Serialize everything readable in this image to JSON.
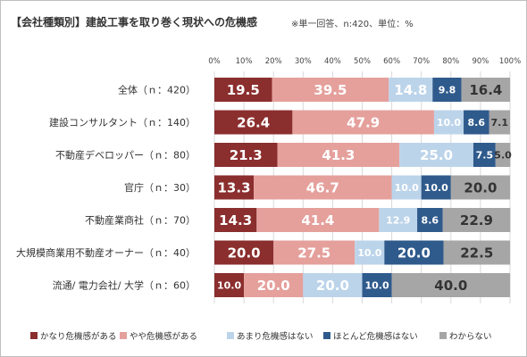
{
  "header": {
    "title": "【会社種類別】建設工事を取り巻く現状への危機感",
    "note": "※単一回答、n:420、単位：%"
  },
  "colors": {
    "かなり危機感がある": "#8b2e2e",
    "やや危機感がある": "#e5a09c",
    "あまり危機感はない": "#bcd4ea",
    "ほとんど危機感はない": "#2f5a8c",
    "わからない": "#a6a6a6"
  },
  "chart_data": {
    "type": "bar",
    "orientation": "horizontal",
    "stacked": true,
    "categories": [
      "全体（ｎ：420）",
      "建設コンサルタント（ｎ：140）",
      "不動産デベロッパー（ｎ：80）",
      "官庁（ｎ：30）",
      "不動産業商社（ｎ：70）",
      "大規模商業用不動産オーナー（ｎ：40）",
      "流通/ 電力会社/ 大学（ｎ：60）"
    ],
    "series": [
      {
        "name": "かなり危機感がある",
        "values": [
          19.5,
          26.4,
          21.3,
          13.3,
          14.3,
          20.0,
          10.0
        ]
      },
      {
        "name": "やや危機感がある",
        "values": [
          39.5,
          47.9,
          41.3,
          46.7,
          41.4,
          27.5,
          20.0
        ]
      },
      {
        "name": "あまり危機感はない",
        "values": [
          14.8,
          10.0,
          25.0,
          10.0,
          12.9,
          10.0,
          20.0
        ]
      },
      {
        "name": "ほとんど危機感はない",
        "values": [
          9.8,
          8.6,
          7.5,
          10.0,
          8.6,
          20.0,
          10.0
        ]
      },
      {
        "name": "わからない",
        "values": [
          16.4,
          7.1,
          5.0,
          20.0,
          22.9,
          22.5,
          40.0
        ]
      }
    ],
    "data_labels": [
      [
        "19.5",
        "39.5",
        "14.8",
        "9.8",
        "16.4"
      ],
      [
        "26.4",
        "47.9",
        "10.0",
        "8.6",
        "7.1"
      ],
      [
        "21.3",
        "41.3",
        "25.0",
        "7.5",
        "5.0"
      ],
      [
        "13.3",
        "46.7",
        "10.0",
        "10.0",
        "20.0"
      ],
      [
        "14.3",
        "41.4",
        "12.9",
        "8.6",
        "22.9"
      ],
      [
        "20.0",
        "27.5",
        "10.0",
        "20.0",
        "22.5"
      ],
      [
        "10.0",
        "20.0",
        "20.0",
        "10.0",
        "40.0"
      ]
    ],
    "x_ticks": [
      "0%",
      "10%",
      "20%",
      "30%",
      "40%",
      "50%",
      "60%",
      "70%",
      "80%",
      "90%",
      "100%"
    ],
    "xlim": [
      0,
      100
    ],
    "grid": true,
    "legend_position": "bottom"
  }
}
